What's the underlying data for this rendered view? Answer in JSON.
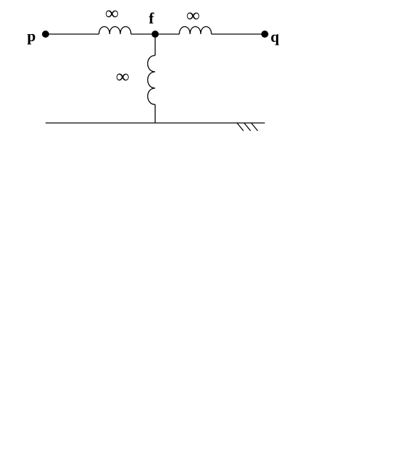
{
  "diagram": {
    "nodes": {
      "p": {
        "label": "p"
      },
      "f": {
        "label": "f"
      },
      "q": {
        "label": "q"
      }
    },
    "inductors": [
      {
        "id": "left",
        "between": [
          "p",
          "f"
        ],
        "label": "∞"
      },
      {
        "id": "right",
        "between": [
          "f",
          "q"
        ],
        "label": "∞"
      },
      {
        "id": "shunt",
        "between": [
          "f",
          "ground"
        ],
        "label": "∞"
      }
    ]
  }
}
